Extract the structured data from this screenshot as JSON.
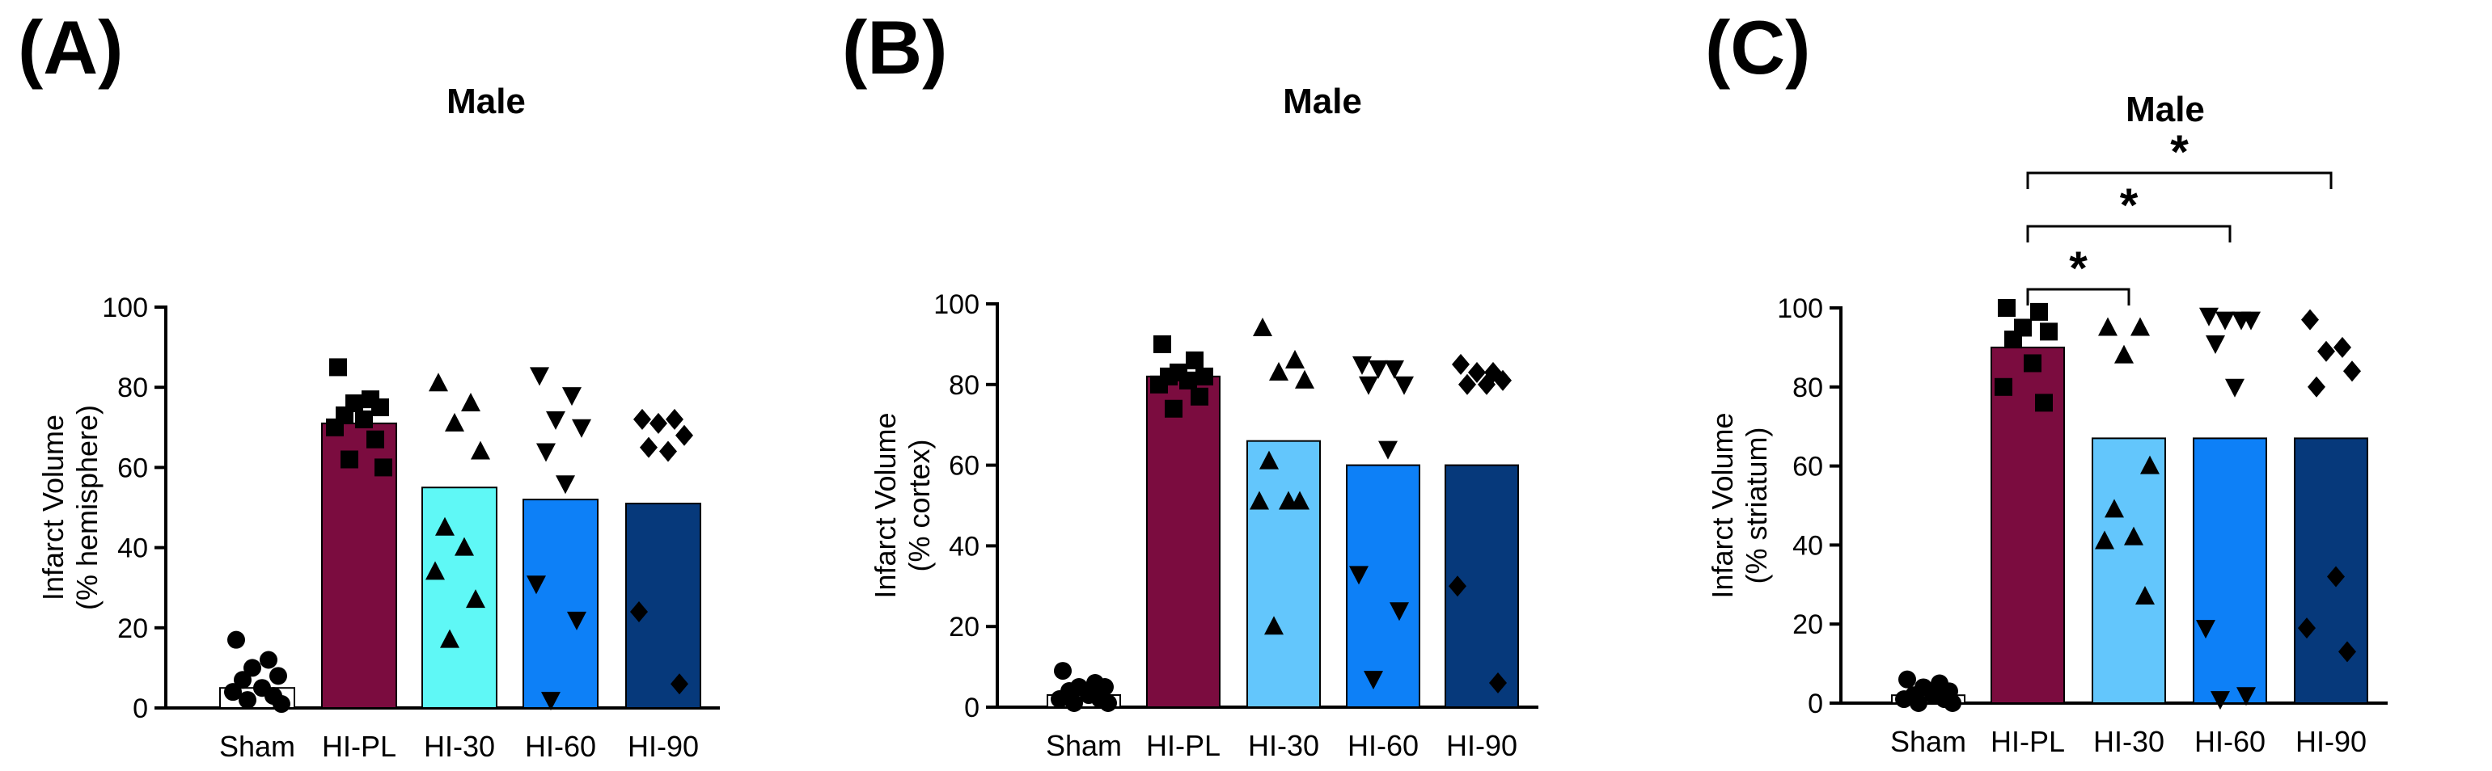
{
  "colors": {
    "sham": "#ffffff",
    "hi_pl": "#7b0c3f",
    "hi_30_A": "#5ff8f6",
    "hi_30_BC": "#63c6fc",
    "hi_60": "#0d80f7",
    "hi_90": "#06397b"
  },
  "chart_data": [
    {
      "panel_label": "(A)",
      "title": "Male",
      "type": "bar",
      "xlabel": "",
      "ylabel_line1": "Infarct Volume",
      "ylabel_line2": "(% hemisphere)",
      "ylim": [
        0,
        100
      ],
      "yticks": [
        "0",
        "20",
        "40",
        "60",
        "80",
        "100"
      ],
      "categories": [
        "Sham",
        "HI-PL",
        "HI-30",
        "HI-60",
        "HI-90"
      ],
      "markers": [
        "circle",
        "square",
        "triangle-up",
        "triangle-down",
        "diamond"
      ],
      "values": [
        5,
        71,
        55,
        52,
        51
      ],
      "points": [
        [
          17,
          12,
          10,
          8,
          7,
          5,
          4,
          3,
          2,
          1
        ],
        [
          85,
          77,
          76,
          75,
          73,
          72,
          70,
          67,
          62,
          60
        ],
        [
          81,
          76,
          71,
          64,
          45,
          40,
          34,
          27,
          17
        ],
        [
          83,
          78,
          72,
          70,
          64,
          56,
          31,
          22,
          2
        ],
        [
          72,
          72,
          71,
          68,
          65,
          64,
          24,
          6
        ]
      ],
      "significance": []
    },
    {
      "panel_label": "(B)",
      "title": "Male",
      "type": "bar",
      "xlabel": "",
      "ylabel_line1": "Infarct Volume",
      "ylabel_line2": "(% cortex)",
      "ylim": [
        0,
        100
      ],
      "yticks": [
        "0",
        "20",
        "40",
        "60",
        "80",
        "100"
      ],
      "categories": [
        "Sham",
        "HI-PL",
        "HI-30",
        "HI-60",
        "HI-90"
      ],
      "markers": [
        "circle",
        "square",
        "triangle-up",
        "triangle-down",
        "diamond"
      ],
      "values": [
        3,
        82,
        66,
        60,
        60
      ],
      "points": [
        [
          9,
          6,
          5,
          5,
          4,
          3,
          2,
          2,
          1,
          1
        ],
        [
          90,
          86,
          83,
          82,
          82,
          81,
          80,
          77,
          74
        ],
        [
          94,
          86,
          83,
          81,
          61,
          51,
          51,
          51,
          20
        ],
        [
          85,
          84,
          84,
          80,
          80,
          64,
          33,
          24,
          7
        ],
        [
          85,
          83,
          83,
          81,
          80,
          80,
          30,
          6
        ]
      ],
      "significance": []
    },
    {
      "panel_label": "(C)",
      "title": "Male",
      "type": "bar",
      "xlabel": "",
      "ylabel_line1": "Infarct Volume",
      "ylabel_line2": "(% striatum)",
      "ylim": [
        0,
        100
      ],
      "yticks": [
        "0",
        "20",
        "40",
        "60",
        "80",
        "100"
      ],
      "categories": [
        "Sham",
        "HI-PL",
        "HI-30",
        "HI-60",
        "HI-90"
      ],
      "markers": [
        "circle",
        "square",
        "triangle-up",
        "triangle-down",
        "diamond"
      ],
      "values": [
        2,
        90,
        67,
        67,
        67
      ],
      "points": [
        [
          6,
          5,
          4,
          3,
          2,
          2,
          1,
          1,
          0,
          0
        ],
        [
          100,
          99,
          95,
          94,
          92,
          86,
          80,
          76
        ],
        [
          95,
          95,
          88,
          60,
          49,
          42,
          41,
          27
        ],
        [
          98,
          97,
          97,
          97,
          91,
          80,
          19,
          2,
          1
        ],
        [
          97,
          90,
          89,
          84,
          80,
          32,
          19,
          13
        ]
      ],
      "significance": [
        {
          "from": "HI-PL",
          "to": "HI-30",
          "label": "*"
        },
        {
          "from": "HI-PL",
          "to": "HI-60",
          "label": "*"
        },
        {
          "from": "HI-PL",
          "to": "HI-90",
          "label": "*"
        }
      ]
    }
  ]
}
